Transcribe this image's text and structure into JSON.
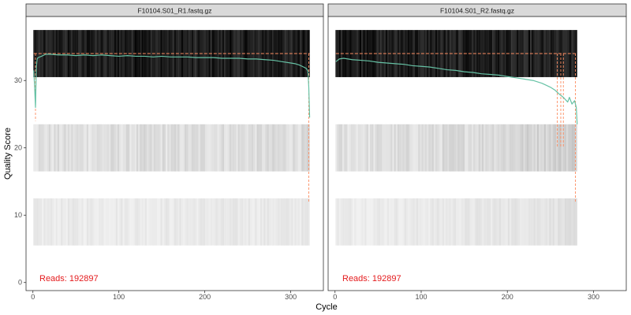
{
  "chart_data": {
    "type": "line",
    "xlabel": "Cycle",
    "ylabel": "Quality Score",
    "xticks": [
      0,
      100,
      200,
      300
    ],
    "yticks": [
      0,
      10,
      20,
      30
    ],
    "xlim": [
      -8,
      338
    ],
    "ylim": [
      -1.2,
      39.5
    ],
    "grid": false,
    "colors": {
      "mean_line": "#66c2a5",
      "quantile_line": "#fc8d62",
      "reads_text": "#e41a1c",
      "strip_fill": "#d9d9d9",
      "panel_border": "#333333"
    },
    "panels": [
      {
        "title": "F10104.S01_R1.fastq.gz",
        "reads_label": "Reads:  192897",
        "cycles": 322,
        "mean_quality": {
          "x": [
            1,
            2,
            3,
            4,
            5,
            6,
            8,
            10,
            15,
            20,
            30,
            40,
            50,
            60,
            70,
            80,
            90,
            100,
            110,
            120,
            130,
            140,
            150,
            160,
            170,
            180,
            190,
            200,
            210,
            220,
            230,
            240,
            250,
            260,
            270,
            280,
            290,
            300,
            305,
            310,
            315,
            318,
            320,
            321,
            322
          ],
          "y": [
            31.5,
            29.0,
            26.0,
            32.0,
            33.2,
            33.4,
            33.5,
            33.6,
            33.9,
            33.9,
            33.8,
            33.8,
            33.7,
            33.8,
            33.7,
            33.8,
            33.7,
            33.6,
            33.7,
            33.6,
            33.6,
            33.5,
            33.6,
            33.5,
            33.5,
            33.5,
            33.4,
            33.4,
            33.4,
            33.3,
            33.3,
            33.3,
            33.2,
            33.2,
            33.1,
            33.0,
            32.8,
            32.6,
            32.5,
            32.3,
            32.0,
            31.8,
            31.4,
            29.0,
            24.5
          ]
        },
        "q25_line": {
          "x": [
            1,
            3,
            4,
            318,
            320,
            321,
            322
          ],
          "y": [
            34,
            34,
            34,
            34,
            34,
            34,
            34
          ]
        },
        "q_drop_lines": [
          {
            "x": 3,
            "y_from": 34,
            "y_to": 24
          },
          {
            "x": 321,
            "y_from": 34,
            "y_to": 12
          }
        ]
      },
      {
        "title": "F10104.S01_R2.fastq.gz",
        "reads_label": "Reads:  192897",
        "cycles": 281,
        "mean_quality": {
          "x": [
            1,
            3,
            5,
            10,
            20,
            30,
            40,
            50,
            60,
            70,
            80,
            90,
            100,
            110,
            120,
            130,
            140,
            150,
            160,
            170,
            180,
            190,
            200,
            210,
            220,
            230,
            240,
            245,
            250,
            255,
            260,
            265,
            270,
            272,
            275,
            278,
            280,
            281
          ],
          "y": [
            32.8,
            33.0,
            33.2,
            33.3,
            33.1,
            33.0,
            32.9,
            32.7,
            32.6,
            32.5,
            32.4,
            32.2,
            32.1,
            32.0,
            31.8,
            31.6,
            31.5,
            31.3,
            31.2,
            31.0,
            30.9,
            30.8,
            30.6,
            30.4,
            30.2,
            30.0,
            29.6,
            29.3,
            29.0,
            28.6,
            28.0,
            27.5,
            26.8,
            27.5,
            26.5,
            27.0,
            26.0,
            23.5
          ]
        },
        "q25_line": {
          "x": [
            1,
            257,
            258,
            262,
            264,
            266,
            268,
            278,
            280,
            281
          ],
          "y": [
            34,
            34,
            34,
            34,
            34,
            34,
            34,
            34,
            34,
            34
          ]
        },
        "q_drop_lines": [
          {
            "x": 258,
            "y_from": 34,
            "y_to": 20
          },
          {
            "x": 262,
            "y_from": 34,
            "y_to": 20
          },
          {
            "x": 265,
            "y_from": 34,
            "y_to": 20
          },
          {
            "x": 279,
            "y_from": 34,
            "y_to": 12
          }
        ]
      }
    ],
    "heat_bands": [
      {
        "y_from": 30.5,
        "y_to": 37.5,
        "shade": "dark"
      },
      {
        "y_from": 16.5,
        "y_to": 23.5,
        "shade": "light"
      },
      {
        "y_from": 5.5,
        "y_to": 12.5,
        "shade": "faint"
      }
    ]
  }
}
